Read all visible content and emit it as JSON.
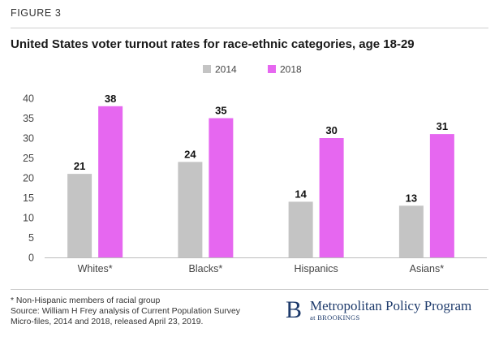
{
  "figure_label": "FIGURE 3",
  "title": "United States voter turnout rates for race-ethnic categories, age 18-29",
  "footnote": {
    "line1": "* Non-Hispanic members of racial group",
    "line2": "Source: William H Frey analysis of Current Population Survey",
    "line3": "Micro-files, 2014 and 2018, released April 23, 2019."
  },
  "brand": {
    "mark": "B",
    "name": "Metropolitan Policy Program",
    "at": "at",
    "org": "BROOKINGS"
  },
  "colors": {
    "series_2014": "#c4c4c4",
    "series_2018": "#e667f0",
    "axis_text": "#444444",
    "gridline": "#d9d9d9",
    "brand": "#1d3a6b"
  },
  "chart_data": {
    "type": "bar",
    "title": "United States voter turnout rates for race-ethnic categories, age 18-29",
    "categories": [
      "Whites*",
      "Blacks*",
      "Hispanics",
      "Asians*"
    ],
    "series": [
      {
        "name": "2014",
        "values": [
          21,
          24,
          14,
          13
        ],
        "labels": [
          "21",
          "24",
          "14",
          "13"
        ]
      },
      {
        "name": "2018",
        "values": [
          38,
          35,
          30,
          31
        ],
        "labels": [
          "38",
          "35",
          "30",
          "31"
        ]
      }
    ],
    "xlabel": "",
    "ylabel": "",
    "ylim": [
      0,
      40
    ],
    "yticks": [
      0,
      5,
      10,
      15,
      20,
      25,
      30,
      35,
      40
    ],
    "legend_position": "top-center",
    "grid": false
  }
}
